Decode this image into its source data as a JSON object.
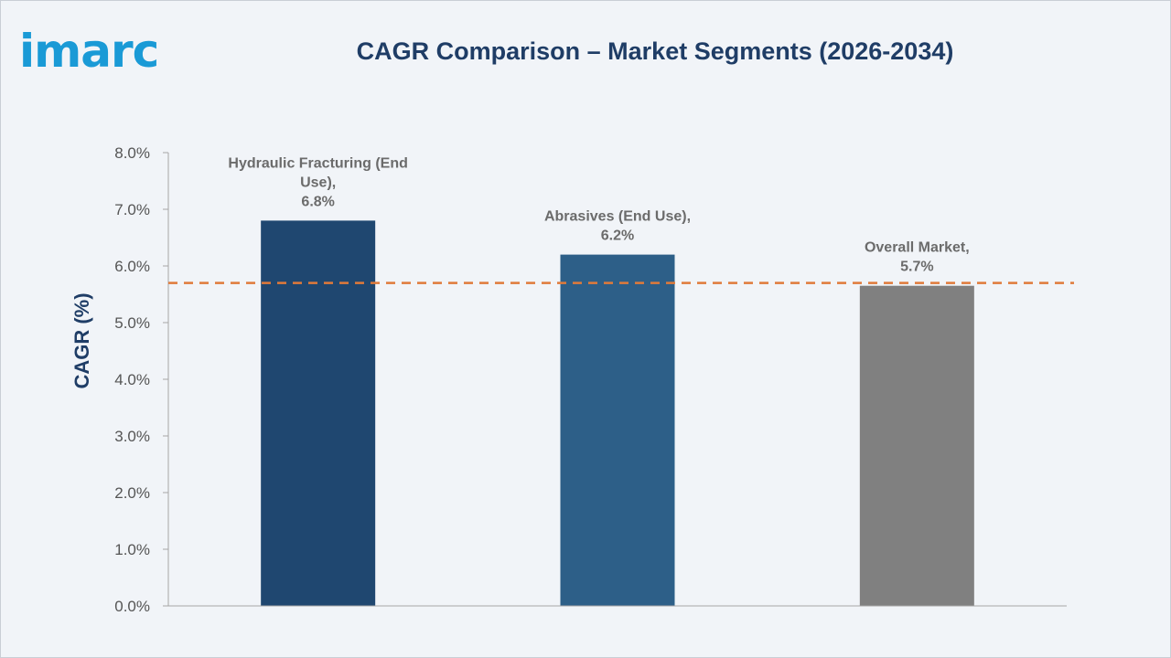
{
  "logo": {
    "text": "imarc"
  },
  "colors": {
    "background": "#f1f4f8",
    "title": "#1f3d66",
    "logo": "#1a9ad6",
    "reference_line": "#e07a3a",
    "axis": "#a6a6a6"
  },
  "chart_data": {
    "type": "bar",
    "title": "CAGR Comparison – Market Segments (2026-2034)",
    "xlabel": "",
    "ylabel": "CAGR (%)",
    "ylim": [
      0,
      8
    ],
    "y_ticks": [
      "0.0%",
      "1.0%",
      "2.0%",
      "3.0%",
      "4.0%",
      "5.0%",
      "6.0%",
      "7.0%",
      "8.0%"
    ],
    "categories": [
      "Hydraulic Fracturing (End Use)",
      "Abrasives (End Use)",
      "Overall Market"
    ],
    "values": [
      6.8,
      6.2,
      5.65
    ],
    "bar_colors": [
      "#1f4770",
      "#2d5f88",
      "#808080"
    ],
    "data_labels": [
      [
        "Hydraulic Fracturing (End",
        "Use),",
        "6.8%"
      ],
      [
        "Abrasives (End Use),",
        "6.2%"
      ],
      [
        "Overall Market,",
        "5.7%"
      ]
    ],
    "reference_line": {
      "value": 5.7,
      "style": "dashed"
    },
    "grid": false,
    "legend": "none"
  }
}
